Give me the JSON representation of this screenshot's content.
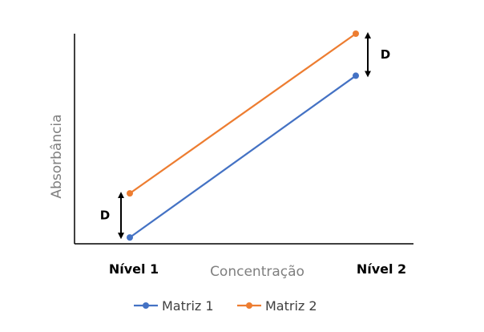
{
  "chart_data": {
    "type": "line",
    "title": "",
    "xlabel": "Concentração",
    "ylabel": "Absorbância",
    "categories": [
      "Nível 1",
      "Nível 2"
    ],
    "ylim": [
      0,
      10
    ],
    "grid": false,
    "legend_position": "bottom",
    "series": [
      {
        "name": "Matriz 1",
        "values": [
          0.3,
          8.0
        ],
        "color": "#4472C4"
      },
      {
        "name": "Matriz 2",
        "values": [
          2.4,
          10.0
        ],
        "color": "#ED7D31"
      }
    ],
    "annotations": [
      {
        "text": "D",
        "category_index": 0
      },
      {
        "text": "D",
        "category_index": 1
      }
    ]
  }
}
